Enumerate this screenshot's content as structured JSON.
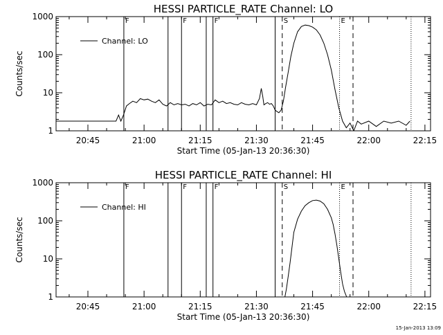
{
  "footer_timestamp": "15-Jan-2013 13:09",
  "chart_data": [
    {
      "type": "line",
      "title": "HESSI PARTICLE_RATE Channel: LO",
      "xlabel": "Start Time (05-Jan-13 20:36:30)",
      "ylabel": "Counts/sec",
      "y_scale": "log",
      "ylim": [
        1,
        1000
      ],
      "y_ticks": [
        1,
        10,
        100,
        1000
      ],
      "y_tick_labels": [
        "1",
        "10",
        "100",
        "1000"
      ],
      "xlim_minutes": [
        36.5,
        136.5
      ],
      "x_ticks": [
        45,
        60,
        75,
        90,
        105,
        120,
        135
      ],
      "x_tick_labels": [
        "20:45",
        "21:00",
        "21:15",
        "21:30",
        "21:45",
        "22:00",
        "22:15"
      ],
      "legend": {
        "label": "Channel: LO",
        "position": "top-left"
      },
      "markers": [
        {
          "t": 54.6,
          "style": "solid",
          "label": "F"
        },
        {
          "t": 66.4,
          "style": "solid",
          "label": ""
        },
        {
          "t": 70.0,
          "style": "solid",
          "label": "F"
        },
        {
          "t": 76.6,
          "style": "solid",
          "label": ""
        },
        {
          "t": 78.4,
          "style": "solid",
          "label": "F"
        },
        {
          "t": 95.0,
          "style": "solid",
          "label": ""
        },
        {
          "t": 96.9,
          "style": "dashed",
          "label": "S"
        },
        {
          "t": 112.2,
          "style": "dotted",
          "label": "E"
        },
        {
          "t": 115.8,
          "style": "dashed",
          "label": ""
        },
        {
          "t": 131.3,
          "style": "dotted",
          "label": ""
        }
      ],
      "series": [
        {
          "x": [
            36.5,
            44.0,
            52.5,
            53.2,
            53.8,
            54.5,
            55.3,
            56.1,
            57.0,
            58.0,
            59.0,
            60.0,
            61.0,
            62.0,
            63.0,
            64.0,
            65.0,
            66.0,
            67.0,
            68.0,
            69.0,
            70.0,
            71.0,
            72.0,
            73.0,
            74.0,
            75.0,
            76.0,
            77.0,
            78.0,
            79.0,
            80.0,
            81.0,
            82.0,
            83.0,
            84.0,
            85.0,
            86.0,
            87.0,
            88.0,
            89.0,
            90.0,
            90.8,
            91.3,
            91.7,
            92.0,
            92.5,
            93.0,
            93.5,
            94.0,
            94.5,
            95.0,
            95.5,
            96.0,
            96.6,
            97.2,
            97.8,
            98.5,
            99.2,
            100.0,
            101.0,
            102.0,
            103.0,
            104.0,
            105.0,
            106.0,
            107.0,
            108.0,
            109.0,
            110.0,
            111.0,
            112.0,
            113.0,
            114.0,
            115.0,
            116.0,
            117.0,
            118.0,
            120.0,
            122.0,
            124.0,
            126.0,
            128.0,
            130.0,
            131.0
          ],
          "y": [
            1.8,
            1.8,
            1.8,
            2.6,
            1.8,
            2.6,
            4.5,
            5.2,
            6.0,
            5.5,
            7.0,
            6.5,
            6.8,
            6.0,
            5.5,
            6.5,
            5.0,
            4.5,
            5.5,
            4.8,
            5.2,
            4.8,
            5.0,
            4.5,
            5.2,
            4.8,
            5.5,
            4.5,
            5.0,
            4.8,
            6.5,
            5.5,
            6.0,
            5.2,
            5.5,
            5.0,
            4.8,
            5.5,
            5.0,
            4.8,
            5.2,
            4.8,
            7.0,
            13.0,
            8.0,
            4.8,
            5.2,
            5.5,
            5.0,
            5.2,
            4.5,
            3.5,
            3.2,
            3.0,
            3.5,
            6.0,
            14.0,
            35.0,
            90.0,
            200.0,
            400.0,
            550.0,
            600.0,
            580.0,
            530.0,
            450.0,
            330.0,
            200.0,
            100.0,
            40.0,
            12.0,
            4.0,
            1.8,
            1.2,
            1.6,
            1.0,
            1.8,
            1.5,
            1.8,
            1.3,
            1.8,
            1.6,
            1.8,
            1.4,
            1.8
          ]
        }
      ]
    },
    {
      "type": "line",
      "title": "HESSI PARTICLE_RATE Channel: HI",
      "xlabel": "Start Time (05-Jan-13 20:36:30)",
      "ylabel": "Counts/sec",
      "y_scale": "log",
      "ylim": [
        1,
        1000
      ],
      "y_ticks": [
        1,
        10,
        100,
        1000
      ],
      "y_tick_labels": [
        "1",
        "10",
        "100",
        "1000"
      ],
      "xlim_minutes": [
        36.5,
        136.5
      ],
      "x_ticks": [
        45,
        60,
        75,
        90,
        105,
        120,
        135
      ],
      "x_tick_labels": [
        "20:45",
        "21:00",
        "21:15",
        "21:30",
        "21:45",
        "22:00",
        "22:15"
      ],
      "legend": {
        "label": "Channel: HI",
        "position": "top-left"
      },
      "markers": [
        {
          "t": 54.6,
          "style": "solid",
          "label": "F"
        },
        {
          "t": 66.4,
          "style": "solid",
          "label": ""
        },
        {
          "t": 70.0,
          "style": "solid",
          "label": "F"
        },
        {
          "t": 76.6,
          "style": "solid",
          "label": ""
        },
        {
          "t": 78.4,
          "style": "solid",
          "label": "F"
        },
        {
          "t": 95.0,
          "style": "solid",
          "label": ""
        },
        {
          "t": 96.9,
          "style": "dashed",
          "label": "S"
        },
        {
          "t": 112.2,
          "style": "dotted",
          "label": "E"
        },
        {
          "t": 115.8,
          "style": "dashed",
          "label": ""
        },
        {
          "t": 131.3,
          "style": "dotted",
          "label": ""
        }
      ],
      "series": [
        {
          "x": [
            97.6,
            98.0,
            98.5,
            99.0,
            99.5,
            100.0,
            101.0,
            102.0,
            103.0,
            104.0,
            105.0,
            106.0,
            107.0,
            108.0,
            109.0,
            110.0,
            110.5,
            111.0,
            111.5,
            112.0,
            112.5,
            113.0,
            113.5,
            114.1
          ],
          "y": [
            1.0,
            1.6,
            3.5,
            8.0,
            20.0,
            50.0,
            110.0,
            180.0,
            250.0,
            300.0,
            340.0,
            350.0,
            330.0,
            280.0,
            200.0,
            120.0,
            80.0,
            45.0,
            22.0,
            10.0,
            4.5,
            2.2,
            1.4,
            1.0
          ]
        }
      ]
    }
  ]
}
